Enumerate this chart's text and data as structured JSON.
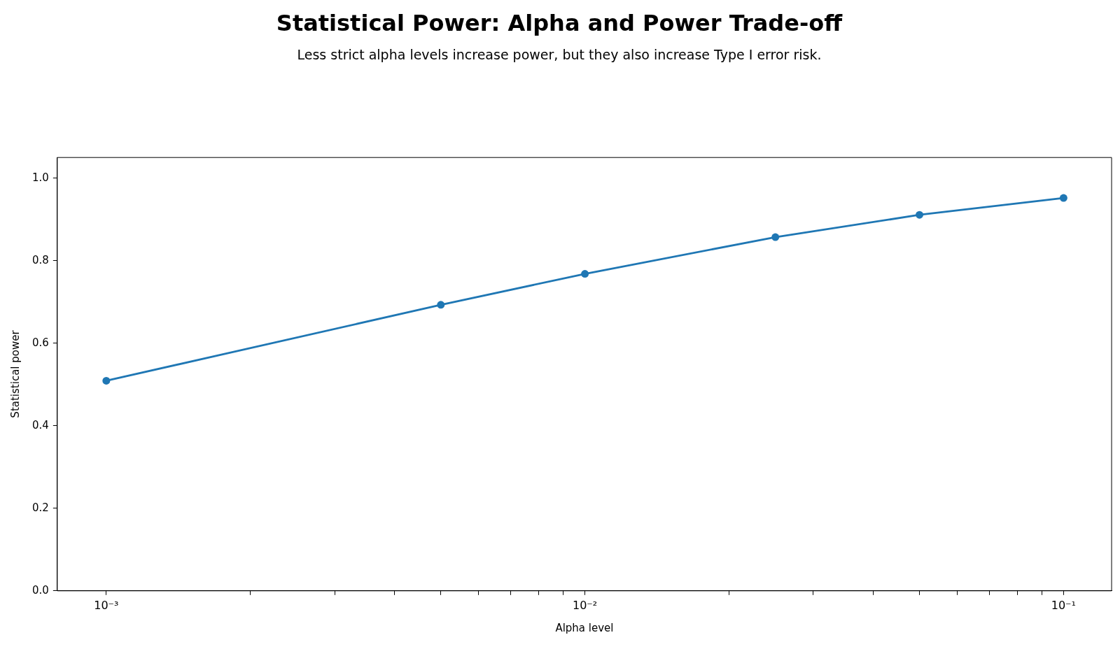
{
  "chart_data": {
    "type": "line",
    "title": "Statistical Power: Alpha and Power Trade-off",
    "subtitle": "Less strict alpha levels increase power, but they also increase Type I error risk.",
    "xlabel": "Alpha level",
    "ylabel": "Statistical power",
    "x": [
      0.001,
      0.005,
      0.01,
      0.025,
      0.05,
      0.1
    ],
    "series": [
      {
        "color": "#1f77b4",
        "values": [
          0.509,
          0.693,
          0.768,
          0.857,
          0.911,
          0.952
        ]
      }
    ],
    "log": "x",
    "xlim": [
      0.00079,
      0.126
    ],
    "ylim": [
      0,
      1.05
    ],
    "xticks": [
      {
        "value": 0.001,
        "label": "10⁻³"
      },
      {
        "value": 0.002,
        "label": null
      },
      {
        "value": 0.003,
        "label": null
      },
      {
        "value": 0.004,
        "label": null
      },
      {
        "value": 0.005,
        "label": null
      },
      {
        "value": 0.006,
        "label": null
      },
      {
        "value": 0.007,
        "label": null
      },
      {
        "value": 0.008,
        "label": null
      },
      {
        "value": 0.009,
        "label": null
      },
      {
        "value": 0.01,
        "label": "10⁻²"
      },
      {
        "value": 0.02,
        "label": null
      },
      {
        "value": 0.03,
        "label": null
      },
      {
        "value": 0.04,
        "label": null
      },
      {
        "value": 0.05,
        "label": null
      },
      {
        "value": 0.06,
        "label": null
      },
      {
        "value": 0.07,
        "label": null
      },
      {
        "value": 0.08,
        "label": null
      },
      {
        "value": 0.09,
        "label": null
      },
      {
        "value": 0.1,
        "label": "10⁻¹"
      }
    ],
    "yticks": [
      {
        "value": 0,
        "label": "0.0"
      },
      {
        "value": 0.2,
        "label": "0.2"
      },
      {
        "value": 0.4,
        "label": "0.4"
      },
      {
        "value": 0.6,
        "label": "0.6"
      },
      {
        "value": 0.8,
        "label": "0.8"
      },
      {
        "value": 1,
        "label": "1.0"
      }
    ],
    "grid": false,
    "legend": false,
    "marker": "circle",
    "line_style": "solid"
  }
}
